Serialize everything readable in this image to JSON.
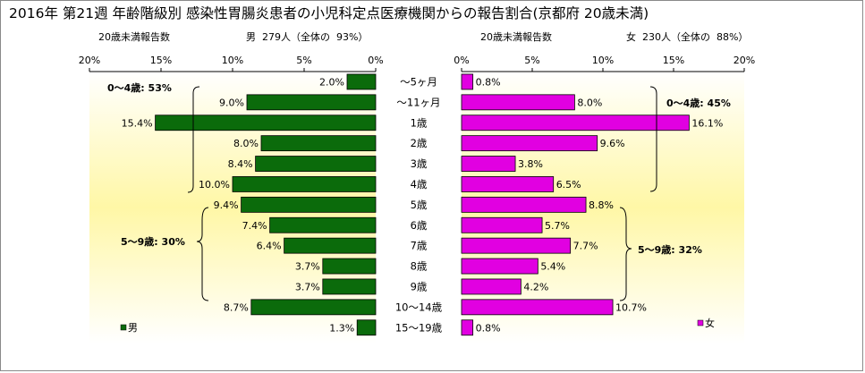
{
  "colors": {
    "male_bar": "#0b6b0b",
    "female_bar": "#e100e1",
    "plot_bg_top": "#ffffff",
    "plot_bg_mid": "#fff7a6",
    "bar_border": "#000000"
  },
  "header": {
    "title": "2016年 第21週 年齢階級別 感染性胃腸炎患者の小児科定点医療機関からの報告割合(京都府 20歳未満)",
    "male_caption": "20歳未満報告数",
    "male_count": "男  279人（全体の  93%）",
    "female_caption": "20歳未満報告数",
    "female_count": "女  230人（全体の  88%）"
  },
  "chart_data": {
    "type": "bar",
    "orientation": "horizontal-pyramid",
    "title": "2016年 第21週 年齢階級別 感染性胃腸炎患者の小児科定点医療機関からの報告割合(京都府 20歳未満)",
    "categories": [
      "～5ヶ月",
      "～11ヶ月",
      "1歳",
      "2歳",
      "3歳",
      "4歳",
      "5歳",
      "6歳",
      "7歳",
      "8歳",
      "9歳",
      "10～14歳",
      "15～19歳"
    ],
    "series": [
      {
        "name": "男",
        "values": [
          2.0,
          9.0,
          15.4,
          8.0,
          8.4,
          10.0,
          9.4,
          7.4,
          6.4,
          3.7,
          3.7,
          8.7,
          1.3
        ]
      },
      {
        "name": "女",
        "values": [
          0.8,
          8.0,
          16.1,
          9.6,
          3.8,
          6.5,
          8.8,
          5.7,
          7.7,
          5.4,
          4.2,
          10.7,
          0.8
        ]
      }
    ],
    "male_axis_ticks": [
      "20%",
      "15%",
      "10%",
      "5%",
      "0%"
    ],
    "female_axis_ticks": [
      "0%",
      "5%",
      "10%",
      "15%",
      "20%"
    ],
    "xlim": [
      0,
      20
    ],
    "unit": "%",
    "legend": {
      "male": "男",
      "female": "女",
      "male_position": "bottom-left",
      "female_position": "bottom-right"
    },
    "annotations": {
      "male_0_4": "0～4歳: 53%",
      "male_5_9": "5～9歳: 30%",
      "female_0_4": "0～4歳: 45%",
      "female_5_9": "5～9歳: 32%"
    },
    "grid": false
  }
}
